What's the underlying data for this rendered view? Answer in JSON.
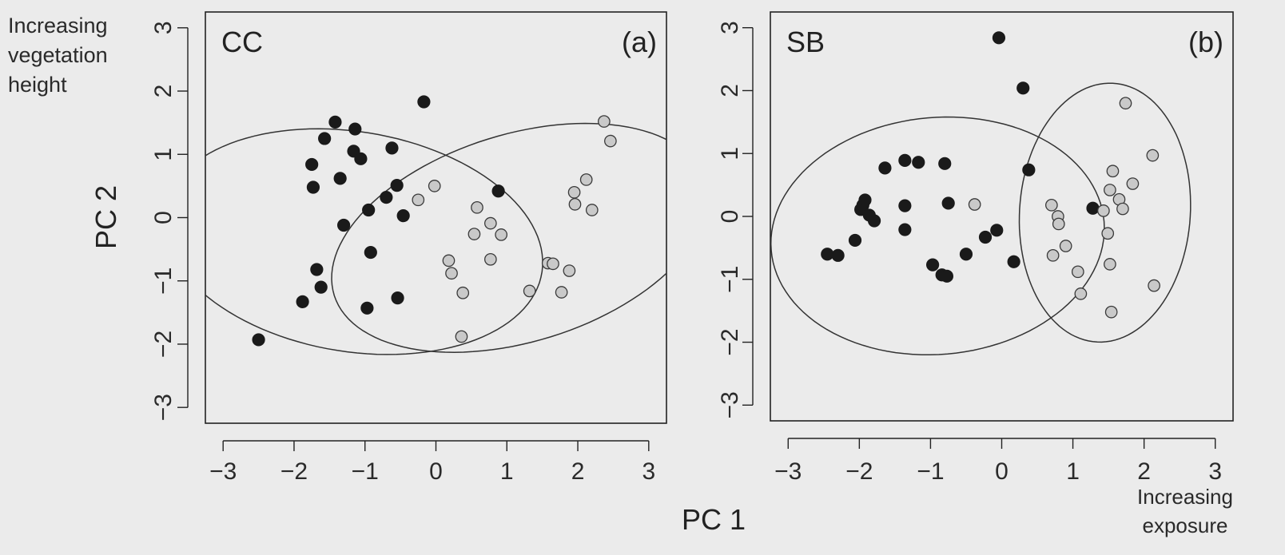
{
  "figure": {
    "xlabel": "PC 1",
    "ylabel": "PC 2",
    "y_note": [
      "Increasing",
      "vegetation",
      "height"
    ],
    "x_note": [
      "Increasing",
      "exposure"
    ]
  },
  "colors": {
    "filled": "#1a1a1a",
    "open_fill": "#c9c9c9",
    "outline": "#222222",
    "background": "#ebebeb"
  },
  "chart_data": [
    {
      "type": "scatter",
      "title": "CC",
      "panel_label": "(a)",
      "xlim": [
        -3.25,
        3.25
      ],
      "ylim": [
        -3.25,
        3.25
      ],
      "xticks": [
        -3,
        -2,
        -1,
        0,
        1,
        2,
        3
      ],
      "yticks": [
        -3,
        -2,
        -1,
        0,
        1,
        2,
        3
      ],
      "series": [
        {
          "marker": "filled",
          "points": [
            [
              -2.5,
              -1.93
            ],
            [
              -1.88,
              -1.33
            ],
            [
              -1.62,
              -1.1
            ],
            [
              -1.68,
              -0.82
            ],
            [
              -1.3,
              -0.12
            ],
            [
              -1.73,
              0.48
            ],
            [
              -1.75,
              0.84
            ],
            [
              -1.57,
              1.25
            ],
            [
              -1.42,
              1.51
            ],
            [
              -1.35,
              0.62
            ],
            [
              -1.14,
              1.4
            ],
            [
              -1.16,
              1.05
            ],
            [
              -1.06,
              0.93
            ],
            [
              -0.95,
              0.12
            ],
            [
              -0.92,
              -0.55
            ],
            [
              -0.97,
              -1.43
            ],
            [
              -0.7,
              0.32
            ],
            [
              -0.62,
              1.1
            ],
            [
              -0.55,
              0.51
            ],
            [
              -0.54,
              -1.27
            ],
            [
              -0.46,
              0.03
            ],
            [
              -0.17,
              1.83
            ],
            [
              0.88,
              0.42
            ]
          ]
        },
        {
          "marker": "open",
          "points": [
            [
              -0.25,
              0.28
            ],
            [
              -0.02,
              0.5
            ],
            [
              0.18,
              -0.68
            ],
            [
              0.22,
              -0.88
            ],
            [
              0.38,
              -1.19
            ],
            [
              0.36,
              -1.88
            ],
            [
              0.54,
              -0.26
            ],
            [
              0.58,
              0.16
            ],
            [
              0.77,
              -0.09
            ],
            [
              0.77,
              -0.66
            ],
            [
              0.92,
              -0.27
            ],
            [
              1.32,
              -1.16
            ],
            [
              1.58,
              -0.72
            ],
            [
              1.65,
              -0.73
            ],
            [
              1.77,
              -1.18
            ],
            [
              1.88,
              -0.84
            ],
            [
              1.95,
              0.4
            ],
            [
              1.96,
              0.21
            ],
            [
              2.12,
              0.6
            ],
            [
              2.2,
              0.12
            ],
            [
              2.37,
              1.52
            ],
            [
              2.46,
              1.21
            ]
          ]
        }
      ],
      "ellipses": [
        {
          "group": "filled",
          "center": [
            -1.17,
            -0.38
          ],
          "semi_axes": [
            1.73,
            2.71
          ],
          "angle_deg": 78
        },
        {
          "group": "open",
          "center": [
            1.18,
            -0.32
          ],
          "semi_axes": [
            2.77,
            1.62
          ],
          "angle_deg": 21
        }
      ]
    },
    {
      "type": "scatter",
      "title": "SB",
      "panel_label": "(b)",
      "xlim": [
        -3.25,
        3.25
      ],
      "ylim": [
        -3.25,
        3.25
      ],
      "xticks": [
        -3,
        -2,
        -1,
        0,
        1,
        2,
        3
      ],
      "yticks": [
        -3,
        -2,
        -1,
        0,
        1,
        2,
        3
      ],
      "series": [
        {
          "marker": "filled",
          "points": [
            [
              -2.45,
              -0.6
            ],
            [
              -2.3,
              -0.62
            ],
            [
              -2.06,
              -0.38
            ],
            [
              -1.98,
              0.11
            ],
            [
              -1.95,
              0.18
            ],
            [
              -1.92,
              0.26
            ],
            [
              -1.86,
              0.02
            ],
            [
              -1.79,
              -0.07
            ],
            [
              -1.64,
              0.77
            ],
            [
              -1.36,
              0.89
            ],
            [
              -1.36,
              0.17
            ],
            [
              -1.36,
              -0.21
            ],
            [
              -1.17,
              0.86
            ],
            [
              -0.97,
              -0.77
            ],
            [
              -0.84,
              -0.93
            ],
            [
              -0.8,
              0.84
            ],
            [
              -0.77,
              -0.95
            ],
            [
              -0.75,
              0.21
            ],
            [
              -0.5,
              -0.6
            ],
            [
              -0.23,
              -0.33
            ],
            [
              -0.07,
              -0.22
            ],
            [
              -0.04,
              2.84
            ],
            [
              0.17,
              -0.72
            ],
            [
              0.3,
              2.04
            ],
            [
              0.38,
              0.74
            ],
            [
              1.28,
              0.13
            ]
          ]
        },
        {
          "marker": "open",
          "points": [
            [
              -0.38,
              0.19
            ],
            [
              0.7,
              0.18
            ],
            [
              0.72,
              -0.62
            ],
            [
              0.79,
              0.0
            ],
            [
              0.8,
              -0.12
            ],
            [
              0.9,
              -0.47
            ],
            [
              1.07,
              -0.88
            ],
            [
              1.11,
              -1.23
            ],
            [
              1.43,
              0.09
            ],
            [
              1.49,
              -0.27
            ],
            [
              1.52,
              0.42
            ],
            [
              1.52,
              -0.76
            ],
            [
              1.54,
              -1.52
            ],
            [
              1.56,
              0.72
            ],
            [
              1.65,
              0.27
            ],
            [
              1.7,
              0.12
            ],
            [
              1.74,
              1.8
            ],
            [
              1.84,
              0.52
            ],
            [
              2.12,
              0.97
            ],
            [
              2.14,
              -1.1
            ]
          ]
        }
      ],
      "ellipses": [
        {
          "group": "filled",
          "center": [
            -0.9,
            -0.31
          ],
          "semi_axes": [
            2.35,
            1.88
          ],
          "angle_deg": 8
        },
        {
          "group": "open",
          "center": [
            1.45,
            0.06
          ],
          "semi_axes": [
            1.2,
            2.06
          ],
          "angle_deg": -3
        }
      ]
    }
  ]
}
